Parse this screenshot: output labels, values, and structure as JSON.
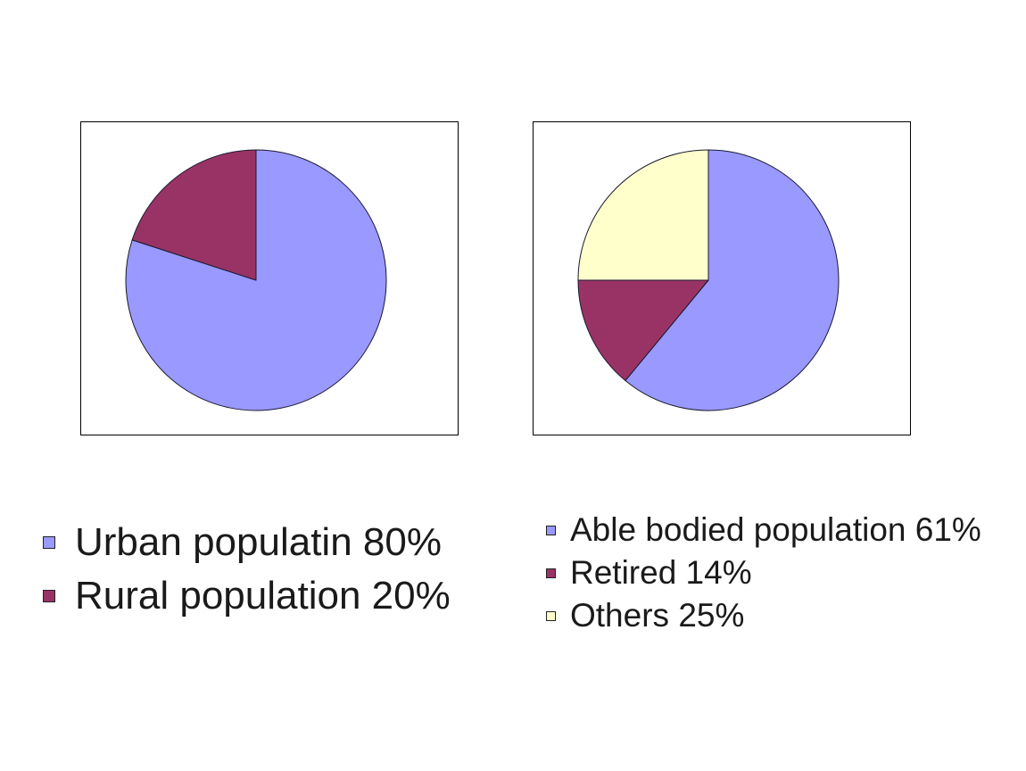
{
  "chart_data": [
    {
      "type": "pie",
      "title": "",
      "categories": [
        "Urban populatin 80%",
        "Rural population 20%"
      ],
      "values": [
        80,
        20
      ],
      "colors": [
        "#9999ff",
        "#993366"
      ],
      "legend_position": "bottom-left"
    },
    {
      "type": "pie",
      "title": "",
      "categories": [
        "Able bodied population 61%",
        "Retired 14%",
        "Others 25%"
      ],
      "values": [
        61,
        14,
        25
      ],
      "colors": [
        "#9999ff",
        "#993366",
        "#ffffcc"
      ],
      "legend_position": "bottom-right"
    }
  ]
}
